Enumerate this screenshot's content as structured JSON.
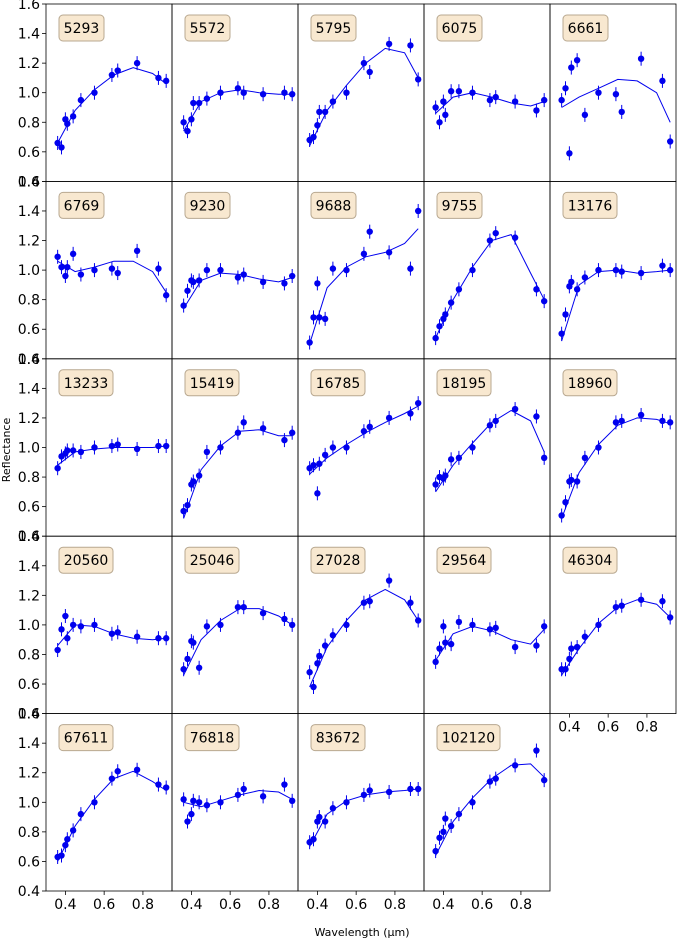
{
  "figure": {
    "xlabel": "Wavelength (μm)",
    "ylabel": "Reflectance"
  },
  "colors": {
    "series": "#0000ee",
    "label_box_fill": "#f8e8d0",
    "label_box_stroke": "#b8a890",
    "frame": "#000000"
  },
  "axes": {
    "xlim": [
      0.3,
      0.95
    ],
    "ylim": [
      0.4,
      1.6
    ],
    "xticks": [
      0.4,
      0.6,
      0.8
    ],
    "xtick_labels": [
      "0.4",
      "0.6",
      "0.8"
    ],
    "yticks": [
      0.4,
      0.6,
      0.8,
      1.0,
      1.2,
      1.4,
      1.6
    ],
    "ytick_labels": [
      "0.4",
      "0.6",
      "0.8",
      "1.0",
      "1.2",
      "1.4",
      "1.6"
    ],
    "layout": "5 columns x 5 rows, 24 panels, shared axes"
  },
  "chart_data": [
    {
      "type": "scatter",
      "label": "5293",
      "x": [
        0.36,
        0.38,
        0.4,
        0.41,
        0.44,
        0.48,
        0.55,
        0.64,
        0.67,
        0.77,
        0.88,
        0.92
      ],
      "y": [
        0.66,
        0.63,
        0.82,
        0.79,
        0.84,
        0.95,
        1.0,
        1.12,
        1.15,
        1.2,
        1.1,
        1.08
      ],
      "fit_x": [
        0.36,
        0.45,
        0.55,
        0.65,
        0.75,
        0.85,
        0.92
      ],
      "fit_y": [
        0.66,
        0.88,
        1.02,
        1.12,
        1.17,
        1.13,
        1.06
      ]
    },
    {
      "type": "scatter",
      "label": "5572",
      "x": [
        0.36,
        0.38,
        0.4,
        0.41,
        0.44,
        0.48,
        0.55,
        0.64,
        0.67,
        0.77,
        0.88,
        0.92
      ],
      "y": [
        0.8,
        0.74,
        0.82,
        0.93,
        0.93,
        0.96,
        1.0,
        1.03,
        1.0,
        0.99,
        1.0,
        0.99
      ],
      "fit_x": [
        0.36,
        0.45,
        0.55,
        0.65,
        0.75,
        0.85,
        0.92
      ],
      "fit_y": [
        0.74,
        0.94,
        1.0,
        1.02,
        1.0,
        0.99,
        0.99
      ]
    },
    {
      "type": "scatter",
      "label": "5795",
      "x": [
        0.36,
        0.38,
        0.4,
        0.41,
        0.44,
        0.48,
        0.55,
        0.64,
        0.67,
        0.77,
        0.88,
        0.92
      ],
      "y": [
        0.68,
        0.7,
        0.78,
        0.87,
        0.87,
        0.94,
        1.0,
        1.2,
        1.14,
        1.33,
        1.32,
        1.09
      ],
      "fit_x": [
        0.36,
        0.45,
        0.55,
        0.65,
        0.75,
        0.85,
        0.92
      ],
      "fit_y": [
        0.64,
        0.88,
        1.05,
        1.2,
        1.3,
        1.27,
        1.1
      ]
    },
    {
      "type": "scatter",
      "label": "6075",
      "x": [
        0.36,
        0.38,
        0.4,
        0.41,
        0.44,
        0.48,
        0.55,
        0.64,
        0.67,
        0.77,
        0.88,
        0.92
      ],
      "y": [
        0.9,
        0.8,
        0.94,
        0.85,
        1.01,
        1.01,
        1.0,
        0.95,
        0.97,
        0.94,
        0.88,
        0.95
      ],
      "fit_x": [
        0.36,
        0.45,
        0.55,
        0.65,
        0.75,
        0.85,
        0.92
      ],
      "fit_y": [
        0.86,
        0.97,
        1.0,
        0.97,
        0.93,
        0.91,
        0.94
      ]
    },
    {
      "type": "scatter",
      "label": "6661",
      "x": [
        0.36,
        0.38,
        0.4,
        0.41,
        0.44,
        0.48,
        0.55,
        0.64,
        0.67,
        0.77,
        0.88,
        0.92
      ],
      "y": [
        0.95,
        1.03,
        0.59,
        1.17,
        1.22,
        0.85,
        1.0,
        0.99,
        0.87,
        1.23,
        1.08,
        0.67
      ],
      "fit_x": [
        0.36,
        0.45,
        0.55,
        0.65,
        0.75,
        0.85,
        0.92
      ],
      "fit_y": [
        0.9,
        0.97,
        1.03,
        1.09,
        1.08,
        1.0,
        0.8
      ]
    },
    {
      "type": "scatter",
      "label": "6769",
      "x": [
        0.36,
        0.38,
        0.4,
        0.41,
        0.44,
        0.48,
        0.55,
        0.64,
        0.67,
        0.77,
        0.88,
        0.92
      ],
      "y": [
        1.09,
        1.02,
        0.96,
        1.02,
        1.11,
        0.97,
        1.0,
        1.01,
        0.98,
        1.13,
        1.01,
        0.83
      ],
      "fit_x": [
        0.36,
        0.45,
        0.55,
        0.65,
        0.75,
        0.85,
        0.92
      ],
      "fit_y": [
        1.06,
        0.99,
        1.02,
        1.06,
        1.06,
        0.99,
        0.85
      ]
    },
    {
      "type": "scatter",
      "label": "9230",
      "x": [
        0.36,
        0.38,
        0.4,
        0.41,
        0.44,
        0.48,
        0.55,
        0.64,
        0.67,
        0.77,
        0.88,
        0.92
      ],
      "y": [
        0.76,
        0.86,
        0.93,
        0.92,
        0.93,
        1.0,
        1.0,
        0.95,
        0.97,
        0.92,
        0.91,
        0.96
      ],
      "fit_x": [
        0.36,
        0.45,
        0.55,
        0.65,
        0.75,
        0.85,
        0.92
      ],
      "fit_y": [
        0.74,
        0.93,
        0.98,
        0.97,
        0.94,
        0.92,
        0.95
      ]
    },
    {
      "type": "scatter",
      "label": "9688",
      "x": [
        0.36,
        0.38,
        0.4,
        0.41,
        0.44,
        0.48,
        0.55,
        0.64,
        0.67,
        0.77,
        0.88,
        0.92
      ],
      "y": [
        0.51,
        0.68,
        0.91,
        0.68,
        0.67,
        1.01,
        1.0,
        1.11,
        1.26,
        1.12,
        1.01,
        1.4
      ],
      "fit_x": [
        0.36,
        0.45,
        0.55,
        0.65,
        0.75,
        0.85,
        0.92
      ],
      "fit_y": [
        0.5,
        0.88,
        1.02,
        1.09,
        1.12,
        1.18,
        1.28
      ]
    },
    {
      "type": "scatter",
      "label": "9755",
      "x": [
        0.36,
        0.38,
        0.4,
        0.41,
        0.44,
        0.48,
        0.55,
        0.64,
        0.67,
        0.77,
        0.88,
        0.92
      ],
      "y": [
        0.54,
        0.62,
        0.67,
        0.7,
        0.78,
        0.87,
        1.0,
        1.2,
        1.25,
        1.22,
        0.87,
        0.79
      ],
      "fit_x": [
        0.36,
        0.45,
        0.55,
        0.65,
        0.75,
        0.85,
        0.92
      ],
      "fit_y": [
        0.54,
        0.8,
        1.02,
        1.2,
        1.24,
        0.98,
        0.8
      ]
    },
    {
      "type": "scatter",
      "label": "13176",
      "x": [
        0.36,
        0.38,
        0.4,
        0.41,
        0.44,
        0.48,
        0.55,
        0.64,
        0.67,
        0.77,
        0.88,
        0.92
      ],
      "y": [
        0.57,
        0.7,
        0.89,
        0.92,
        0.87,
        0.95,
        1.0,
        1.0,
        0.99,
        0.98,
        1.03,
        1.0
      ],
      "fit_x": [
        0.36,
        0.45,
        0.55,
        0.65,
        0.75,
        0.85,
        0.92
      ],
      "fit_y": [
        0.52,
        0.9,
        0.99,
        1.0,
        0.98,
        0.99,
        1.0
      ]
    },
    {
      "type": "scatter",
      "label": "13233",
      "x": [
        0.36,
        0.38,
        0.4,
        0.41,
        0.44,
        0.48,
        0.55,
        0.64,
        0.67,
        0.77,
        0.88,
        0.92
      ],
      "y": [
        0.86,
        0.94,
        0.96,
        0.98,
        0.98,
        0.97,
        1.0,
        1.01,
        1.02,
        0.99,
        1.01,
        1.01
      ],
      "fit_x": [
        0.36,
        0.45,
        0.55,
        0.65,
        0.75,
        0.85,
        0.92
      ],
      "fit_y": [
        0.88,
        0.97,
        0.99,
        1.0,
        1.0,
        1.0,
        1.01
      ]
    },
    {
      "type": "scatter",
      "label": "15419",
      "x": [
        0.36,
        0.38,
        0.4,
        0.41,
        0.44,
        0.48,
        0.55,
        0.64,
        0.67,
        0.77,
        0.88,
        0.92
      ],
      "y": [
        0.57,
        0.61,
        0.75,
        0.77,
        0.81,
        0.97,
        1.0,
        1.1,
        1.17,
        1.13,
        1.05,
        1.1
      ],
      "fit_x": [
        0.36,
        0.45,
        0.55,
        0.65,
        0.75,
        0.85,
        0.92
      ],
      "fit_y": [
        0.52,
        0.85,
        1.01,
        1.11,
        1.12,
        1.08,
        1.08
      ]
    },
    {
      "type": "scatter",
      "label": "16785",
      "x": [
        0.36,
        0.38,
        0.4,
        0.41,
        0.44,
        0.48,
        0.55,
        0.64,
        0.67,
        0.77,
        0.88,
        0.92
      ],
      "y": [
        0.86,
        0.88,
        0.69,
        0.89,
        0.95,
        1.0,
        1.0,
        1.11,
        1.14,
        1.2,
        1.23,
        1.3
      ],
      "fit_x": [
        0.36,
        0.45,
        0.55,
        0.65,
        0.75,
        0.85,
        0.92
      ],
      "fit_y": [
        0.82,
        0.93,
        1.02,
        1.1,
        1.17,
        1.23,
        1.28
      ]
    },
    {
      "type": "scatter",
      "label": "18195",
      "x": [
        0.36,
        0.38,
        0.4,
        0.41,
        0.44,
        0.48,
        0.55,
        0.64,
        0.67,
        0.77,
        0.88,
        0.92
      ],
      "y": [
        0.75,
        0.8,
        0.79,
        0.81,
        0.92,
        0.93,
        1.0,
        1.15,
        1.18,
        1.26,
        1.21,
        0.93
      ],
      "fit_x": [
        0.36,
        0.45,
        0.55,
        0.65,
        0.75,
        0.85,
        0.92
      ],
      "fit_y": [
        0.7,
        0.88,
        1.03,
        1.17,
        1.25,
        1.18,
        0.97
      ]
    },
    {
      "type": "scatter",
      "label": "18960",
      "x": [
        0.36,
        0.38,
        0.4,
        0.41,
        0.44,
        0.48,
        0.55,
        0.64,
        0.67,
        0.77,
        0.88,
        0.92
      ],
      "y": [
        0.54,
        0.63,
        0.77,
        0.78,
        0.77,
        0.93,
        1.0,
        1.17,
        1.18,
        1.22,
        1.18,
        1.17
      ],
      "fit_x": [
        0.36,
        0.45,
        0.55,
        0.65,
        0.75,
        0.85,
        0.92
      ],
      "fit_y": [
        0.52,
        0.83,
        1.02,
        1.15,
        1.2,
        1.19,
        1.16
      ]
    },
    {
      "type": "scatter",
      "label": "20560",
      "x": [
        0.36,
        0.38,
        0.4,
        0.41,
        0.44,
        0.48,
        0.55,
        0.64,
        0.67,
        0.77,
        0.88,
        0.92
      ],
      "y": [
        0.83,
        0.97,
        1.06,
        0.91,
        1.0,
        0.99,
        1.0,
        0.94,
        0.95,
        0.92,
        0.91,
        0.91
      ],
      "fit_x": [
        0.36,
        0.45,
        0.55,
        0.65,
        0.75,
        0.85,
        0.92
      ],
      "fit_y": [
        0.86,
        1.0,
        0.99,
        0.94,
        0.91,
        0.9,
        0.91
      ]
    },
    {
      "type": "scatter",
      "label": "25046",
      "x": [
        0.36,
        0.38,
        0.4,
        0.41,
        0.44,
        0.48,
        0.55,
        0.64,
        0.67,
        0.77,
        0.88,
        0.92
      ],
      "y": [
        0.7,
        0.77,
        0.89,
        0.88,
        0.71,
        0.99,
        1.0,
        1.12,
        1.12,
        1.08,
        1.04,
        1.0
      ],
      "fit_x": [
        0.36,
        0.45,
        0.55,
        0.65,
        0.75,
        0.85,
        0.92
      ],
      "fit_y": [
        0.66,
        0.9,
        1.03,
        1.11,
        1.11,
        1.06,
        1.0
      ]
    },
    {
      "type": "scatter",
      "label": "27028",
      "x": [
        0.36,
        0.38,
        0.4,
        0.41,
        0.44,
        0.48,
        0.55,
        0.64,
        0.67,
        0.77,
        0.88,
        0.92
      ],
      "y": [
        0.68,
        0.58,
        0.74,
        0.79,
        0.86,
        0.93,
        1.0,
        1.15,
        1.16,
        1.3,
        1.15,
        1.03
      ],
      "fit_x": [
        0.36,
        0.45,
        0.55,
        0.65,
        0.75,
        0.85,
        0.92
      ],
      "fit_y": [
        0.58,
        0.85,
        1.03,
        1.17,
        1.24,
        1.17,
        1.03
      ]
    },
    {
      "type": "scatter",
      "label": "29564",
      "x": [
        0.36,
        0.38,
        0.4,
        0.41,
        0.44,
        0.48,
        0.55,
        0.64,
        0.67,
        0.77,
        0.88,
        0.92
      ],
      "y": [
        0.75,
        0.84,
        0.99,
        0.88,
        0.87,
        1.02,
        1.0,
        0.97,
        0.98,
        0.85,
        0.86,
        0.99
      ],
      "fit_x": [
        0.36,
        0.45,
        0.55,
        0.65,
        0.75,
        0.85,
        0.92
      ],
      "fit_y": [
        0.76,
        0.94,
        0.99,
        0.96,
        0.9,
        0.87,
        0.97
      ]
    },
    {
      "type": "scatter",
      "label": "46304",
      "x": [
        0.36,
        0.38,
        0.4,
        0.41,
        0.44,
        0.48,
        0.55,
        0.64,
        0.67,
        0.77,
        0.88,
        0.92
      ],
      "y": [
        0.7,
        0.7,
        0.77,
        0.84,
        0.85,
        0.92,
        1.0,
        1.12,
        1.13,
        1.17,
        1.16,
        1.05
      ],
      "fit_x": [
        0.36,
        0.45,
        0.55,
        0.65,
        0.75,
        0.85,
        0.92
      ],
      "fit_y": [
        0.66,
        0.84,
        1.01,
        1.12,
        1.17,
        1.14,
        1.05
      ]
    },
    {
      "type": "scatter",
      "label": "67611",
      "x": [
        0.36,
        0.38,
        0.4,
        0.41,
        0.44,
        0.48,
        0.55,
        0.64,
        0.67,
        0.77,
        0.88,
        0.92
      ],
      "y": [
        0.63,
        0.64,
        0.71,
        0.75,
        0.81,
        0.92,
        1.0,
        1.16,
        1.21,
        1.22,
        1.12,
        1.1
      ],
      "fit_x": [
        0.36,
        0.45,
        0.55,
        0.65,
        0.75,
        0.85,
        0.92
      ],
      "fit_y": [
        0.6,
        0.84,
        1.02,
        1.16,
        1.21,
        1.14,
        1.08
      ]
    },
    {
      "type": "scatter",
      "label": "76818",
      "x": [
        0.36,
        0.38,
        0.4,
        0.41,
        0.44,
        0.48,
        0.55,
        0.64,
        0.67,
        0.77,
        0.88,
        0.92
      ],
      "y": [
        1.02,
        0.87,
        0.92,
        1.01,
        1.0,
        0.98,
        1.0,
        1.05,
        1.09,
        1.04,
        1.12,
        1.01
      ],
      "fit_x": [
        0.36,
        0.45,
        0.55,
        0.65,
        0.75,
        0.85,
        0.92
      ],
      "fit_y": [
        1.0,
        0.97,
        1.01,
        1.05,
        1.08,
        1.07,
        1.02
      ]
    },
    {
      "type": "scatter",
      "label": "83672",
      "x": [
        0.36,
        0.38,
        0.4,
        0.41,
        0.44,
        0.48,
        0.55,
        0.64,
        0.67,
        0.77,
        0.88,
        0.92
      ],
      "y": [
        0.73,
        0.75,
        0.87,
        0.9,
        0.87,
        0.96,
        1.0,
        1.05,
        1.08,
        1.07,
        1.09,
        1.09
      ],
      "fit_x": [
        0.36,
        0.45,
        0.55,
        0.65,
        0.75,
        0.85,
        0.92
      ],
      "fit_y": [
        0.7,
        0.92,
        1.01,
        1.05,
        1.07,
        1.08,
        1.09
      ]
    },
    {
      "type": "scatter",
      "label": "102120",
      "x": [
        0.36,
        0.38,
        0.4,
        0.41,
        0.44,
        0.48,
        0.55,
        0.64,
        0.67,
        0.77,
        0.88,
        0.92
      ],
      "y": [
        0.67,
        0.76,
        0.8,
        0.89,
        0.84,
        0.92,
        1.0,
        1.14,
        1.16,
        1.25,
        1.35,
        1.15
      ],
      "fit_x": [
        0.36,
        0.45,
        0.55,
        0.65,
        0.75,
        0.85,
        0.92
      ],
      "fit_y": [
        0.64,
        0.87,
        1.03,
        1.16,
        1.25,
        1.26,
        1.17
      ]
    }
  ]
}
